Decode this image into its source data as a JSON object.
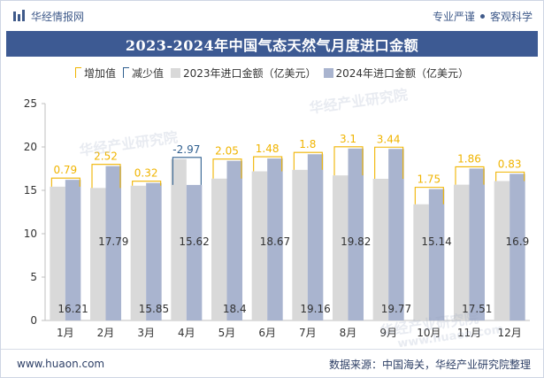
{
  "header": {
    "brand": "华经情报网",
    "slogan_left": "专业严谨",
    "slogan_right": "客观科学"
  },
  "title": "2023-2024年中国气态天然气月度进口金额",
  "legend": {
    "increase": "增加值",
    "decrease": "减少值",
    "series_2023": "2023年进口金额（亿美元）",
    "series_2024": "2024年进口金额（亿美元）"
  },
  "footer": {
    "url": "www.huaon.com",
    "source": "数据来源：中国海关，华经产业研究院整理"
  },
  "watermarks": [
    "华经产业研究院",
    "www.huaon.com"
  ],
  "colors": {
    "bar_2023": "#d9d9d9",
    "bar_2024": "#a9b4cf",
    "increase": "#f0b400",
    "decrease": "#2f5f8f",
    "title_band": "#3d5a93"
  },
  "chart_data": {
    "type": "bar",
    "categories": [
      "1月",
      "2月",
      "3月",
      "4月",
      "5月",
      "6月",
      "7月",
      "8月",
      "9月",
      "10月",
      "11月",
      "12月"
    ],
    "series": [
      {
        "name": "2023年进口金额（亿美元）",
        "values": [
          15.42,
          15.27,
          15.53,
          18.59,
          16.35,
          17.19,
          17.36,
          16.72,
          16.33,
          13.39,
          15.65,
          16.07
        ]
      },
      {
        "name": "2024年进口金额（亿美元）",
        "values": [
          16.21,
          17.79,
          15.85,
          15.62,
          18.4,
          18.67,
          19.16,
          19.82,
          19.77,
          15.14,
          17.51,
          16.9
        ]
      }
    ],
    "changes": [
      0.79,
      2.52,
      0.32,
      -2.97,
      2.05,
      1.48,
      1.8,
      3.1,
      3.44,
      1.75,
      1.86,
      0.83
    ],
    "change_labels": [
      "0.79",
      "2.52",
      "0.32",
      "-2.97",
      "2.05",
      "1.48",
      "1.8",
      "3.1",
      "3.44",
      "1.75",
      "1.86",
      "0.83"
    ],
    "value_labels_2024": [
      "16.21",
      "17.79",
      "15.85",
      "15.62",
      "18.4",
      "18.67",
      "19.16",
      "19.82",
      "19.77",
      "15.14",
      "17.51",
      "16.9"
    ],
    "yticks": [
      0,
      5,
      10,
      15,
      20,
      25
    ],
    "ylim": [
      0,
      25
    ],
    "grid": false
  }
}
